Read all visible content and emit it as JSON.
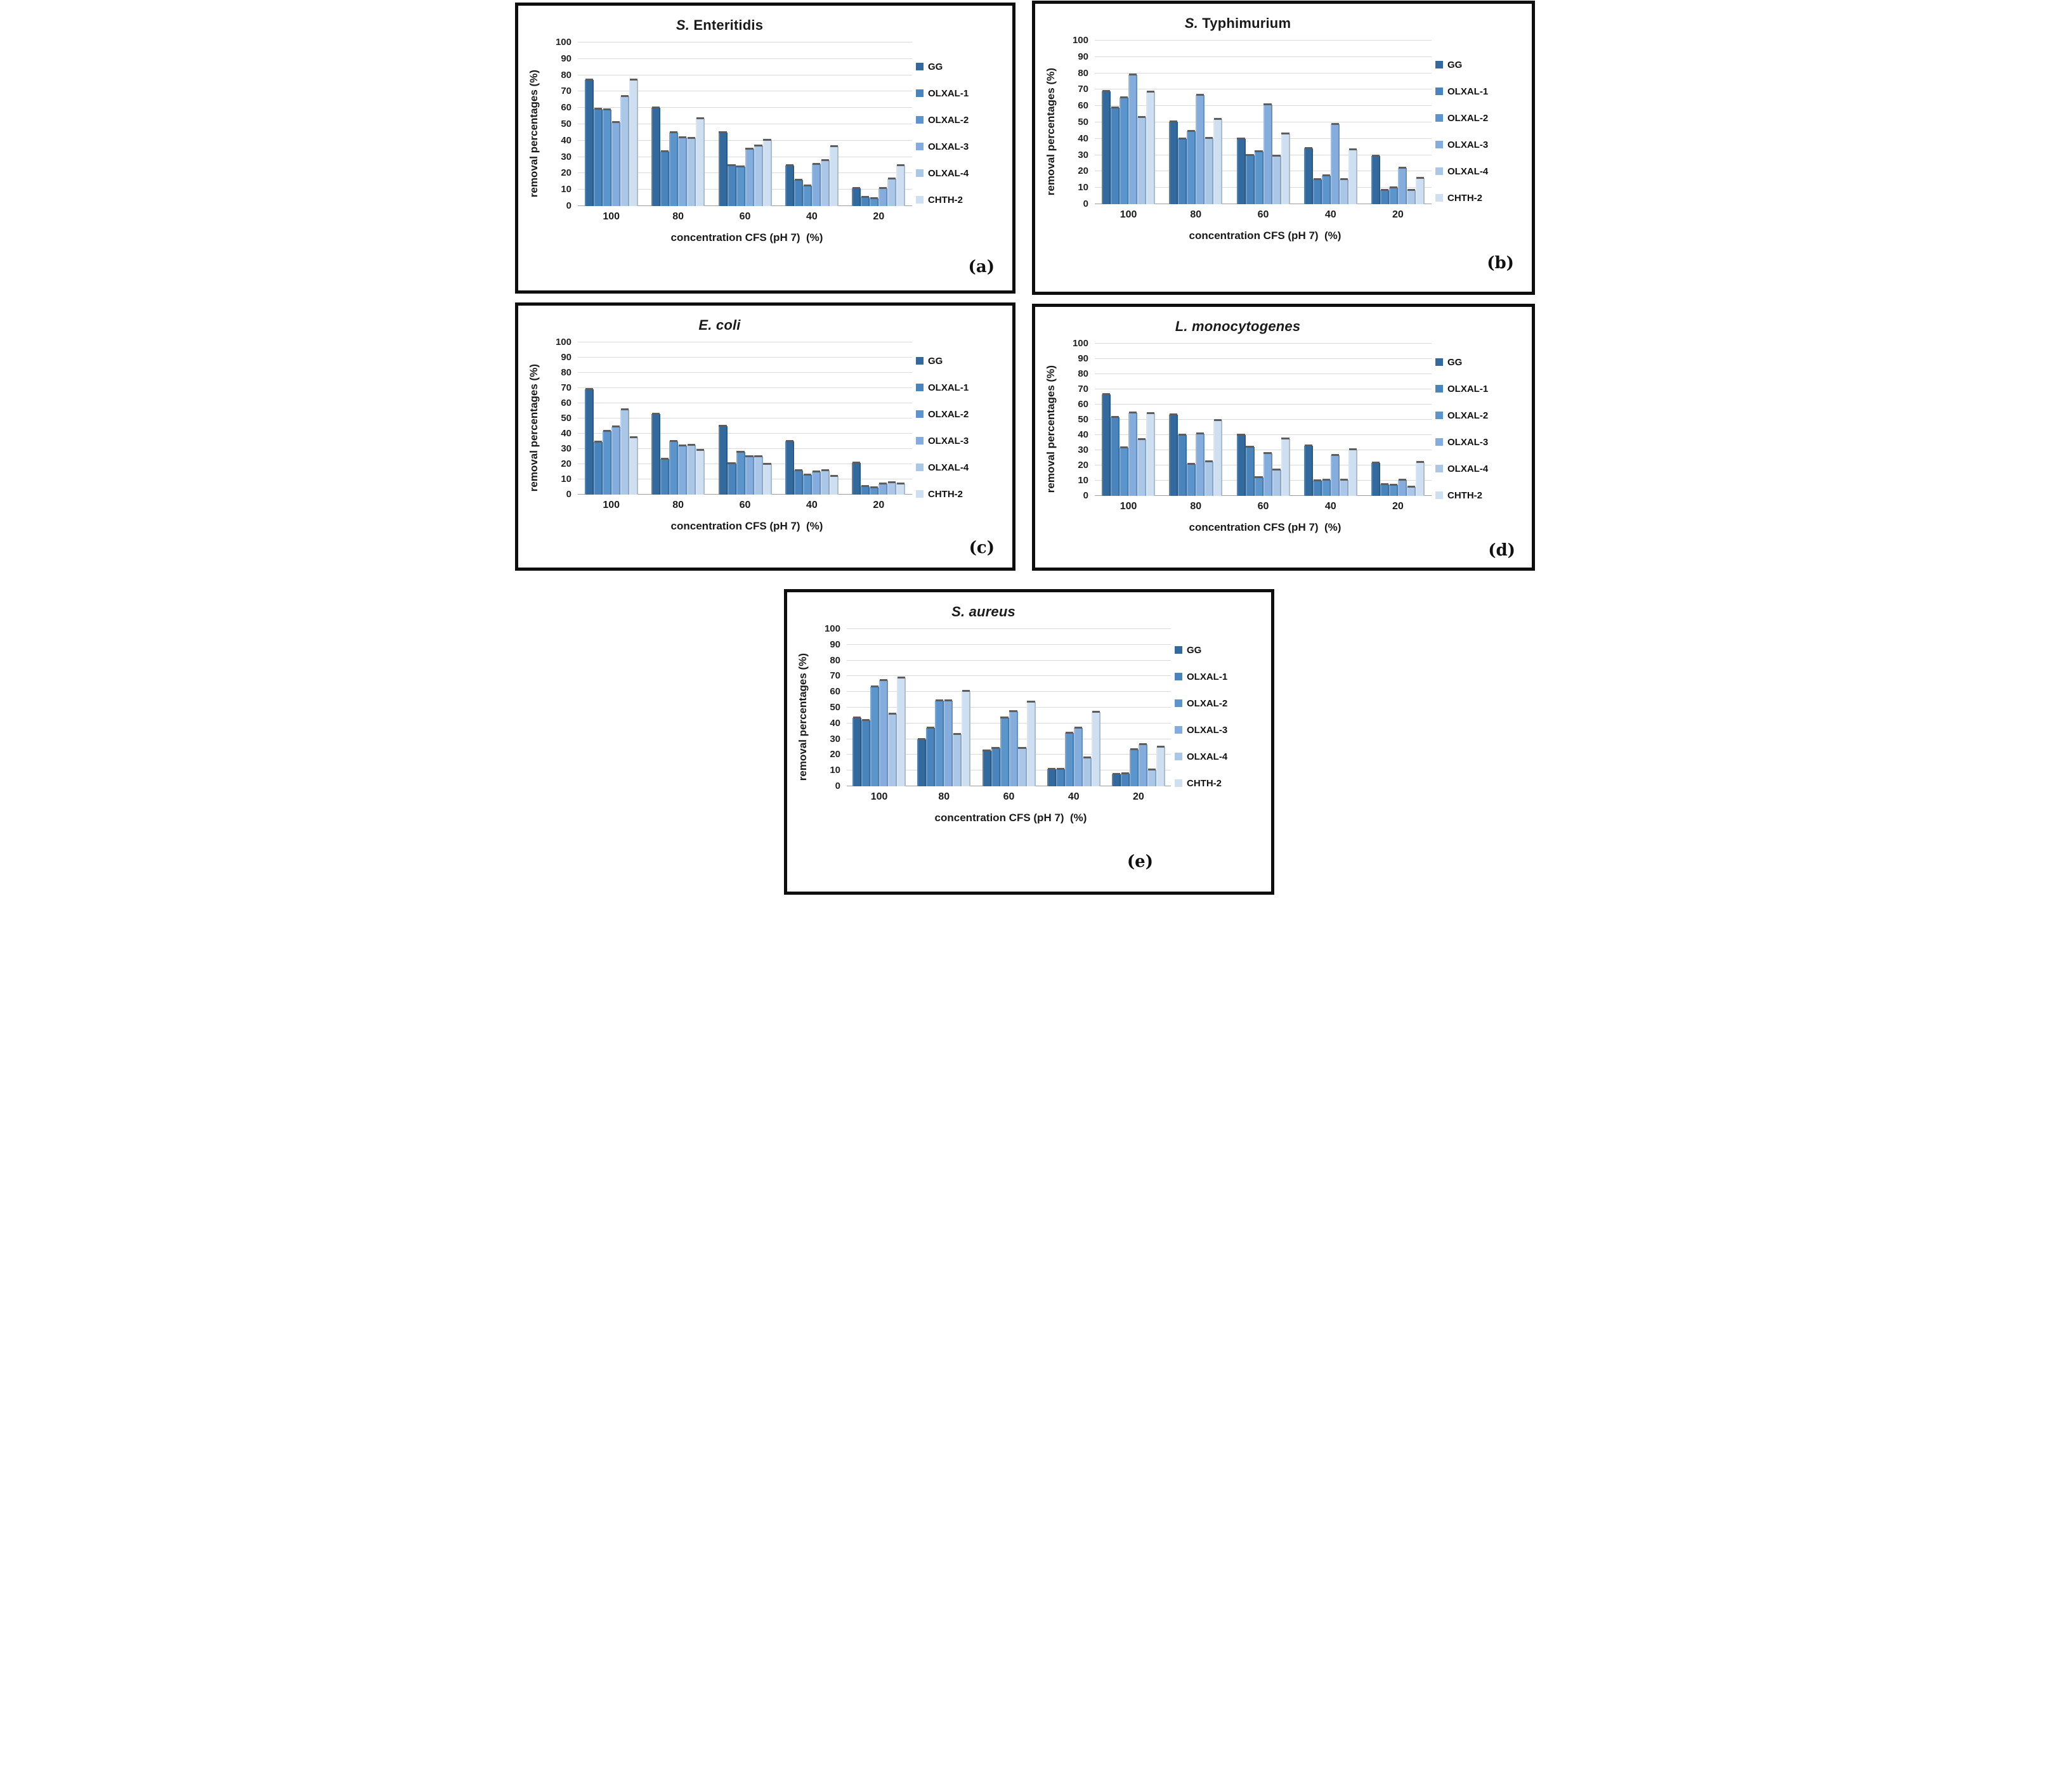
{
  "figure": {
    "ylabel": "removal percentages (%)",
    "xlabel": "concentration CFS (pH 7)  (%)",
    "legend_labels": [
      "GG",
      "OLXAL-1",
      "OLXAL-2",
      "OLXAL-3",
      "OLXAL-4",
      "CHTH-2"
    ],
    "series_colors": [
      "#336a9e",
      "#4a84bc",
      "#5b95cc",
      "#84acdc",
      "#aac7e8",
      "#cfdff2"
    ],
    "error_cap_color": "#5d5d5d",
    "gridline_color": "#d9d9d9",
    "yticks": [
      "0",
      "10",
      "20",
      "30",
      "40",
      "50",
      "60",
      "70",
      "80",
      "90",
      "100"
    ],
    "categories": [
      "100",
      "80",
      "60",
      "40",
      "20"
    ]
  },
  "chart_data": [
    {
      "type": "bar",
      "panel_letter": "(a)",
      "title_italic": "S.",
      "title_regular": " Enteritidis",
      "xlabel": "concentration CFS (pH 7)  (%)",
      "ylabel": "removal percentages (%)",
      "ylim": [
        0,
        100
      ],
      "grid": true,
      "legend_position": "right",
      "categories": [
        "100",
        "80",
        "60",
        "40",
        "20"
      ],
      "series": [
        {
          "name": "GG",
          "values": [
            77,
            60,
            45,
            25,
            11
          ]
        },
        {
          "name": "OLXAL-1",
          "values": [
            59.5,
            33.5,
            25,
            16,
            5.5
          ]
        },
        {
          "name": "OLXAL-2",
          "values": [
            59,
            45,
            24,
            12.5,
            4.5
          ]
        },
        {
          "name": "OLXAL-3",
          "values": [
            51,
            42,
            35,
            25.5,
            11
          ]
        },
        {
          "name": "OLXAL-4",
          "values": [
            67,
            41.5,
            37,
            28,
            16.5
          ]
        },
        {
          "name": "CHTH-2",
          "values": [
            77,
            53.5,
            40.5,
            36.5,
            25
          ]
        }
      ]
    },
    {
      "type": "bar",
      "panel_letter": "(b)",
      "title_italic": "S.",
      "title_regular": " Typhimurium",
      "xlabel": "concentration CFS (pH 7)  (%)",
      "ylabel": "removal percentages (%)",
      "ylim": [
        0,
        100
      ],
      "grid": true,
      "legend_position": "right",
      "categories": [
        "100",
        "80",
        "60",
        "40",
        "20"
      ],
      "series": [
        {
          "name": "GG",
          "values": [
            69,
            50.5,
            40,
            34,
            29.5
          ]
        },
        {
          "name": "OLXAL-1",
          "values": [
            59,
            40,
            30,
            15,
            8.5
          ]
        },
        {
          "name": "OLXAL-2",
          "values": [
            65,
            44.5,
            32,
            17.5,
            10
          ]
        },
        {
          "name": "OLXAL-3",
          "values": [
            79,
            66.5,
            61,
            49,
            22
          ]
        },
        {
          "name": "OLXAL-4",
          "values": [
            53,
            40.5,
            29.5,
            15,
            8.5
          ]
        },
        {
          "name": "CHTH-2",
          "values": [
            68.5,
            52,
            43,
            33.5,
            16
          ]
        }
      ]
    },
    {
      "type": "bar",
      "panel_letter": "(c)",
      "title_italic": "E. coli",
      "title_regular": "",
      "xlabel": "concentration CFS (pH 7)  (%)",
      "ylabel": "removal percentages (%)",
      "ylim": [
        0,
        100
      ],
      "grid": true,
      "legend_position": "right",
      "categories": [
        "100",
        "80",
        "60",
        "40",
        "20"
      ],
      "series": [
        {
          "name": "GG",
          "values": [
            69,
            53,
            45,
            35,
            21
          ]
        },
        {
          "name": "OLXAL-1",
          "values": [
            34.5,
            23.5,
            20.5,
            16,
            5.5
          ]
        },
        {
          "name": "OLXAL-2",
          "values": [
            41.5,
            35,
            28,
            13,
            4.5
          ]
        },
        {
          "name": "OLXAL-3",
          "values": [
            44.5,
            32,
            25,
            15,
            7
          ]
        },
        {
          "name": "OLXAL-4",
          "values": [
            56,
            32.5,
            25,
            16,
            8
          ]
        },
        {
          "name": "CHTH-2",
          "values": [
            37.5,
            29,
            20,
            12,
            7
          ]
        }
      ]
    },
    {
      "type": "bar",
      "panel_letter": "(d)",
      "title_italic": "L. monocytogenes",
      "title_regular": "",
      "xlabel": "concentration CFS (pH 7)  (%)",
      "ylabel": "removal percentages (%)",
      "ylim": [
        0,
        100
      ],
      "grid": true,
      "legend_position": "right",
      "categories": [
        "100",
        "80",
        "60",
        "40",
        "20"
      ],
      "series": [
        {
          "name": "GG",
          "values": [
            66.5,
            53.5,
            40,
            33,
            21.5
          ]
        },
        {
          "name": "OLXAL-1",
          "values": [
            51.5,
            40,
            32,
            10,
            7.5
          ]
        },
        {
          "name": "OLXAL-2",
          "values": [
            31.5,
            21,
            12,
            10.5,
            7
          ]
        },
        {
          "name": "OLXAL-3",
          "values": [
            54.5,
            41,
            28,
            26.5,
            10.5
          ]
        },
        {
          "name": "OLXAL-4",
          "values": [
            37,
            22.5,
            17,
            10.5,
            6
          ]
        },
        {
          "name": "CHTH-2",
          "values": [
            54,
            49.5,
            37.5,
            30.5,
            22
          ]
        }
      ]
    },
    {
      "type": "bar",
      "panel_letter": "(e)",
      "title_italic": "S. aureus",
      "title_regular": "",
      "xlabel": "concentration CFS (pH 7)  (%)",
      "ylabel": "removal percentages (%)",
      "ylim": [
        0,
        100
      ],
      "grid": true,
      "legend_position": "right",
      "categories": [
        "100",
        "80",
        "60",
        "40",
        "20"
      ],
      "series": [
        {
          "name": "GG",
          "values": [
            43.5,
            30,
            22.5,
            11,
            7.5
          ]
        },
        {
          "name": "OLXAL-1",
          "values": [
            42,
            37,
            24,
            11,
            8
          ]
        },
        {
          "name": "OLXAL-2",
          "values": [
            63.5,
            54.5,
            43.5,
            34,
            23.5
          ]
        },
        {
          "name": "OLXAL-3",
          "values": [
            67.5,
            54.5,
            47.5,
            37,
            26.5
          ]
        },
        {
          "name": "OLXAL-4",
          "values": [
            46,
            33,
            24,
            18,
            10.5
          ]
        },
        {
          "name": "CHTH-2",
          "values": [
            69,
            60.5,
            53.5,
            47,
            25
          ]
        }
      ]
    }
  ]
}
